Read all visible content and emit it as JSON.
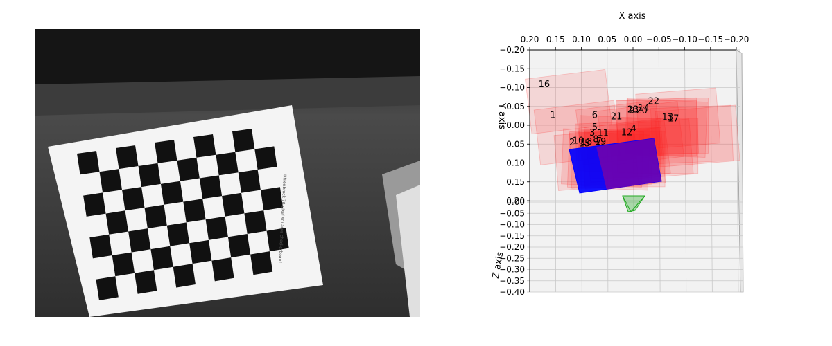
{
  "photo": {
    "subject": "checkerboard-calibration-target",
    "rows": 7,
    "cols": 10,
    "sheet_caption": "Uhlenbrock 70 pixel squares checkerboard"
  },
  "chart_data": {
    "type": "3d-scatter",
    "title": "",
    "xlabel": "X axis",
    "ylabel": "Y axis",
    "zlabel": "Z axis",
    "x_ticks": [
      "0.20",
      "0.15",
      "0.10",
      "0.05",
      "0.00",
      "−0.05",
      "−0.10",
      "−0.15",
      "−0.20"
    ],
    "y_ticks": [
      "−0.20",
      "−0.15",
      "−0.10",
      "−0.05",
      "0.00",
      "0.05",
      "0.10",
      "0.15",
      "0.20"
    ],
    "z_ticks": [
      "−0.40",
      "−0.35",
      "−0.30",
      "−0.25",
      "−0.20",
      "−0.15",
      "−0.10",
      "−0.05",
      "0.00"
    ],
    "xlim": [
      0.2,
      -0.2
    ],
    "ylim": [
      -0.2,
      0.2
    ],
    "zlim": [
      -0.4,
      0.0
    ],
    "grid": true,
    "colors": {
      "board": "#ff2222",
      "highlight": "#0000ff",
      "camera": "#22aa22"
    },
    "boards": [
      {
        "label": "1",
        "x": 0.155,
        "y": -0.028
      },
      {
        "label": "2",
        "x": 0.118,
        "y": 0.044
      },
      {
        "label": "3",
        "x": 0.079,
        "y": 0.018
      },
      {
        "label": "4",
        "x": -0.001,
        "y": 0.007
      },
      {
        "label": "5",
        "x": 0.074,
        "y": 0.004
      },
      {
        "label": "6",
        "x": 0.074,
        "y": -0.028
      },
      {
        "label": "7",
        "x": 0.066,
        "y": 0.04
      },
      {
        "label": "8",
        "x": 0.072,
        "y": 0.036
      },
      {
        "label": "9",
        "x": 0.002,
        "y": -0.04
      },
      {
        "label": "10",
        "x": 0.106,
        "y": 0.039
      },
      {
        "label": "11",
        "x": 0.058,
        "y": 0.019
      },
      {
        "label": "12",
        "x": 0.012,
        "y": 0.017
      },
      {
        "label": "13",
        "x": -0.067,
        "y": -0.023
      },
      {
        "label": "14",
        "x": -0.021,
        "y": -0.047
      },
      {
        "label": "15",
        "x": 0.094,
        "y": 0.047
      },
      {
        "label": "16",
        "x": 0.172,
        "y": -0.11
      },
      {
        "label": "17",
        "x": -0.078,
        "y": -0.019
      },
      {
        "label": "18",
        "x": 0.09,
        "y": 0.042
      },
      {
        "label": "19",
        "x": 0.063,
        "y": 0.042
      },
      {
        "label": "20",
        "x": -0.017,
        "y": -0.04
      },
      {
        "label": "21",
        "x": 0.032,
        "y": -0.025
      },
      {
        "label": "22",
        "x": -0.04,
        "y": -0.065
      },
      {
        "label": "23",
        "x": 0.0,
        "y": -0.043
      }
    ]
  }
}
